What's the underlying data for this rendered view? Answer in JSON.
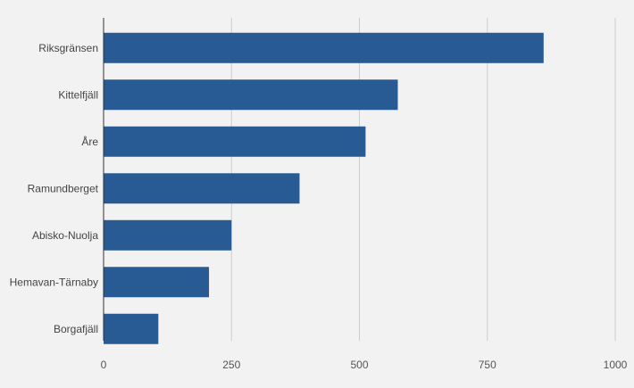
{
  "chart_data": {
    "type": "bar",
    "orientation": "horizontal",
    "title": "",
    "xlabel": "",
    "ylabel": "",
    "categories": [
      "Riksgränsen",
      "Kittelfjäll",
      "Åre",
      "Ramundberget",
      "Abisko-Nuolja",
      "Hemavan-Tärnaby",
      "Borgafjäll"
    ],
    "values": [
      860,
      575,
      512,
      383,
      250,
      206,
      107
    ],
    "xlim": [
      0,
      1000
    ],
    "xticks": [
      0,
      250,
      500,
      750,
      1000
    ],
    "xtick_labels": [
      "0",
      "250",
      "500",
      "750",
      "1000"
    ],
    "grid": "vertical",
    "legend": "none",
    "colors": {
      "bar": "#285a94",
      "grid": "#cccccc",
      "axis": "#333333",
      "background": "#f2f2f2"
    }
  }
}
